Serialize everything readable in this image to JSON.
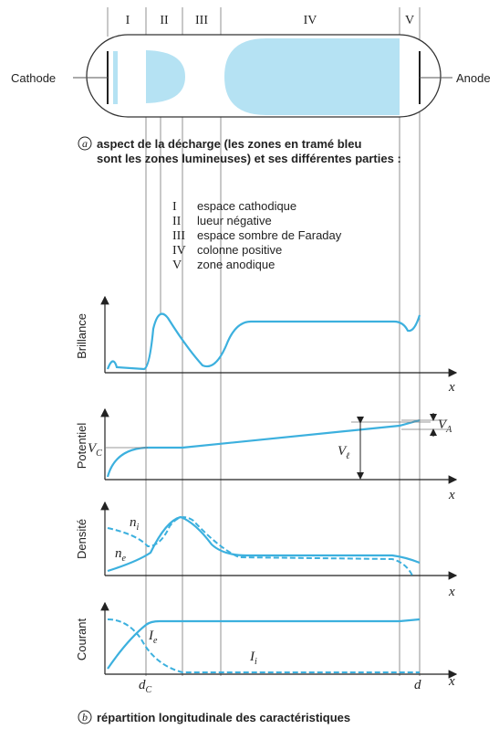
{
  "tube": {
    "zones": [
      "I",
      "II",
      "III",
      "IV",
      "V"
    ],
    "cathode": "Cathode",
    "anode": "Anode"
  },
  "caption_a": {
    "letter": "a",
    "lines": [
      "aspect de la décharge (les zones en tramé bleu",
      "sont les zones lumineuses) et ses différentes parties :"
    ]
  },
  "legend": [
    {
      "numeral": "I",
      "text": "espace cathodique"
    },
    {
      "numeral": "II",
      "text": "lueur négative"
    },
    {
      "numeral": "III",
      "text": "espace sombre de Faraday"
    },
    {
      "numeral": "IV",
      "text": "colonne positive"
    },
    {
      "numeral": "V",
      "text": "zone anodique"
    }
  ],
  "panels": [
    {
      "axis_label": "Brillance",
      "x_label": "x"
    },
    {
      "axis_label": "Potentiel",
      "x_label": "x",
      "labels": [
        {
          "main": "V",
          "sub": "C"
        },
        {
          "main": "V",
          "sub": "ℓ"
        },
        {
          "main": "V",
          "sub": "A"
        }
      ]
    },
    {
      "axis_label": "Densité",
      "x_label": "x",
      "labels": [
        {
          "main": "n",
          "sub": "i"
        },
        {
          "main": "n",
          "sub": "e"
        }
      ]
    },
    {
      "axis_label": "Courant",
      "x_label": "x",
      "labels": [
        {
          "main": "I",
          "sub": "e"
        },
        {
          "main": "I",
          "sub": "i"
        }
      ]
    }
  ],
  "x_marks": [
    {
      "main": "d",
      "sub": "C"
    },
    {
      "main": "d"
    }
  ],
  "caption_b": {
    "letter": "b",
    "text": "répartition longitudinale des caractéristiques"
  }
}
